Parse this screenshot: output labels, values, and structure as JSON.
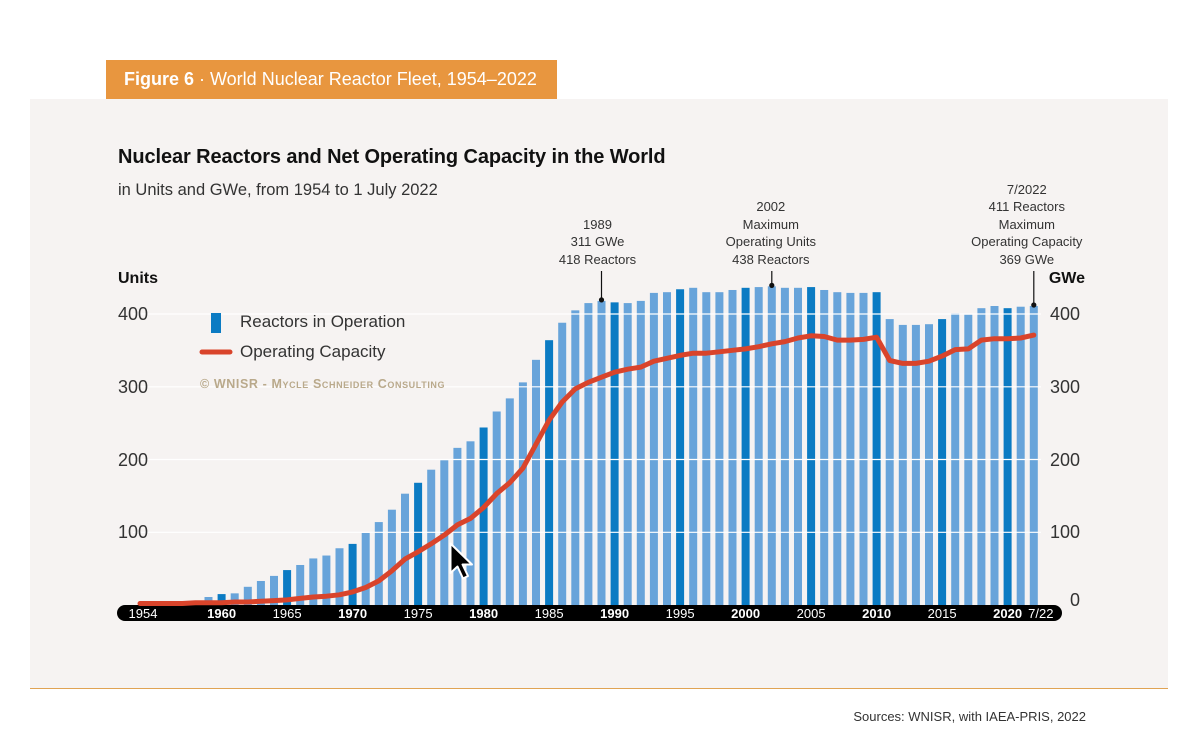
{
  "figure_tab": {
    "label_bold": "Figure 6",
    "label_rest": " · World Nuclear Reactor Fleet, 1954–2022"
  },
  "source": "Sources: WNISR, with IAEA-PRIS, 2022",
  "colors": {
    "tab": "#e8963f",
    "panel": "#f6f3f2",
    "bar": "#68a4da",
    "bar_highlight": "#0b7bc3",
    "line": "#d9442b",
    "axis_band": "#000000",
    "gridline": "#ffffff",
    "watermark": "#b9a98b",
    "rule": "#e0a354"
  },
  "cursor_icon": "mouse-pointer-arrow",
  "chart_data": {
    "type": "bar",
    "title": "Nuclear Reactors and Net Operating Capacity in the World",
    "subtitle": "in Units and GWe, from 1954 to 1 July 2022",
    "ylabel": "Units",
    "ylabel_right": "GWe",
    "ylim": [
      0,
      400
    ],
    "grid": true,
    "left_axis": {
      "ticks": [
        {
          "value": 100,
          "label": "100"
        },
        {
          "value": 200,
          "label": "200"
        },
        {
          "value": 300,
          "label": "300"
        },
        {
          "value": 400,
          "label": "400"
        }
      ]
    },
    "right_axis": {
      "ticks": [
        {
          "value": 0,
          "label": "0"
        },
        {
          "value": 100,
          "label": "100"
        },
        {
          "value": 200,
          "label": "200"
        },
        {
          "value": 300,
          "label": "300"
        },
        {
          "value": 400,
          "label": "400"
        }
      ]
    },
    "x": [
      1954,
      1955,
      1956,
      1957,
      1958,
      1959,
      1960,
      1961,
      1962,
      1963,
      1964,
      1965,
      1966,
      1967,
      1968,
      1969,
      1970,
      1971,
      1972,
      1973,
      1974,
      1975,
      1976,
      1977,
      1978,
      1979,
      1980,
      1981,
      1982,
      1983,
      1984,
      1985,
      1986,
      1987,
      1988,
      1989,
      1990,
      1991,
      1992,
      1993,
      1994,
      1995,
      1996,
      1997,
      1998,
      1999,
      2000,
      2001,
      2002,
      2003,
      2004,
      2005,
      2006,
      2007,
      2008,
      2009,
      2010,
      2011,
      2012,
      2013,
      2014,
      2015,
      2016,
      2017,
      2018,
      2019,
      2020,
      2021,
      2022
    ],
    "x_ticks": [
      {
        "year": 1954,
        "label": "1954"
      },
      {
        "year": 1960,
        "label": "1960"
      },
      {
        "year": 1965,
        "label": "1965"
      },
      {
        "year": 1970,
        "label": "1970"
      },
      {
        "year": 1975,
        "label": "1975"
      },
      {
        "year": 1980,
        "label": "1980"
      },
      {
        "year": 1985,
        "label": "1985"
      },
      {
        "year": 1990,
        "label": "1990"
      },
      {
        "year": 1995,
        "label": "1995"
      },
      {
        "year": 2000,
        "label": "2000"
      },
      {
        "year": 2005,
        "label": "2005"
      },
      {
        "year": 2010,
        "label": "2010"
      },
      {
        "year": 2015,
        "label": "2015"
      },
      {
        "year": 2020,
        "label": "2020"
      },
      {
        "year": 2022,
        "label": "7/22"
      }
    ],
    "highlighted_years": [
      1960,
      1965,
      1970,
      1975,
      1980,
      1985,
      1990,
      1995,
      2000,
      2005,
      2010,
      2015,
      2020
    ],
    "series": [
      {
        "name": "Reactors in Operation",
        "type": "bar",
        "axis": "left",
        "unit": "Units",
        "values": [
          1,
          1,
          2,
          5,
          6,
          11,
          15,
          16,
          25,
          33,
          40,
          48,
          55,
          64,
          68,
          78,
          84,
          99,
          114,
          131,
          153,
          168,
          186,
          199,
          216,
          225,
          244,
          266,
          284,
          306,
          337,
          364,
          388,
          405,
          415,
          418,
          416,
          415,
          418,
          429,
          430,
          434,
          436,
          430,
          430,
          433,
          436,
          437,
          438,
          436,
          436,
          437,
          433,
          430,
          429,
          429,
          430,
          393,
          385,
          385,
          386,
          393,
          401,
          399,
          408,
          411,
          408,
          410,
          411
        ]
      },
      {
        "name": "Operating Capacity",
        "type": "line",
        "axis": "right",
        "unit": "GWe",
        "values": [
          0,
          0,
          0,
          0,
          1,
          1,
          1,
          2,
          2,
          3,
          4,
          5,
          7,
          9,
          10,
          12,
          16,
          22,
          31,
          45,
          61,
          71,
          82,
          94,
          108,
          117,
          132,
          151,
          166,
          186,
          219,
          252,
          277,
          295,
          304,
          311,
          318,
          322,
          325,
          333,
          337,
          341,
          344,
          344,
          346,
          348,
          350,
          353,
          357,
          360,
          365,
          368,
          367,
          362,
          362,
          363,
          366,
          334,
          330,
          330,
          333,
          340,
          349,
          350,
          362,
          364,
          364,
          365,
          369
        ]
      }
    ],
    "legend": {
      "position": "top-left",
      "items": [
        {
          "label": "Reactors in Operation",
          "marker": "bar"
        },
        {
          "label": "Operating Capacity",
          "marker": "line"
        }
      ]
    },
    "watermark": "© WNISR - Mycle Schneider Consulting",
    "annotations": [
      {
        "year": 1989,
        "lines": [
          "1989",
          "311 GWe",
          "418 Reactors"
        ]
      },
      {
        "year": 2002,
        "lines": [
          "2002",
          "Maximum",
          "Operating Units",
          "438 Reactors"
        ]
      },
      {
        "year": 2022,
        "lines": [
          "7/2022",
          "411  Reactors",
          "Maximum",
          "Operating Capacity",
          "369 GWe"
        ]
      }
    ]
  }
}
